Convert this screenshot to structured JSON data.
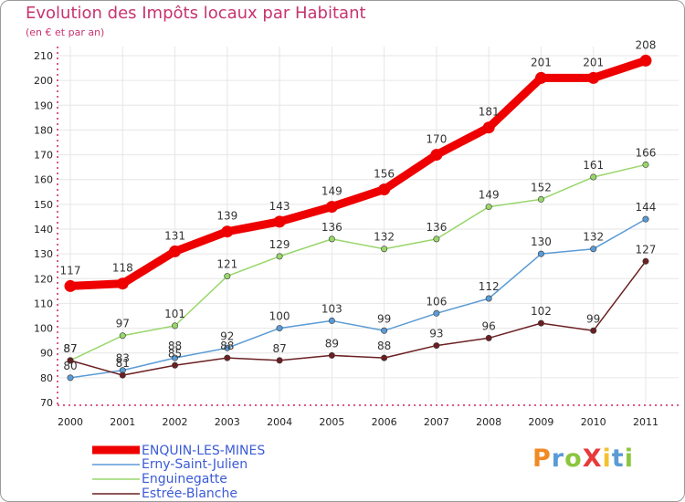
{
  "title": "Evolution des Impôts locaux par Habitant",
  "subtitle": "(en € et par an)",
  "logo": "ProXiti",
  "colors": {
    "title": "#c8336f",
    "axis": "#d02060",
    "grid": "#e6e6e6",
    "legend_text": "#3b5bd6"
  },
  "chart_data": {
    "type": "line",
    "title": "Evolution des Impôts locaux par Habitant",
    "subtitle": "(en € et par an)",
    "xlabel": "",
    "ylabel": "",
    "ylim": [
      70,
      210
    ],
    "yticks": [
      70,
      80,
      90,
      100,
      110,
      120,
      130,
      140,
      150,
      160,
      170,
      180,
      190,
      200,
      210
    ],
    "grid": true,
    "legend_position": "bottom-left",
    "x": [
      "2000",
      "2001",
      "2002",
      "2003",
      "2004",
      "2005",
      "2006",
      "2007",
      "2008",
      "2009",
      "2010",
      "2011"
    ],
    "series": [
      {
        "name": "ENQUIN-LES-MINES",
        "color": "#ee0000",
        "values": [
          117,
          118,
          131,
          139,
          143,
          149,
          156,
          170,
          181,
          201,
          201,
          208
        ]
      },
      {
        "name": "Erny-Saint-Julien",
        "color": "#5a9bd5",
        "values": [
          80,
          83,
          88,
          92,
          100,
          103,
          99,
          106,
          112,
          130,
          132,
          144
        ]
      },
      {
        "name": "Enguinegatte",
        "color": "#98d66a",
        "values": [
          87,
          97,
          101,
          121,
          129,
          136,
          132,
          136,
          149,
          152,
          161,
          166
        ]
      },
      {
        "name": "Estrée-Blanche",
        "color": "#6b1f22",
        "values": [
          87,
          81,
          85,
          88,
          87,
          89,
          88,
          93,
          96,
          102,
          99,
          127
        ]
      }
    ]
  }
}
